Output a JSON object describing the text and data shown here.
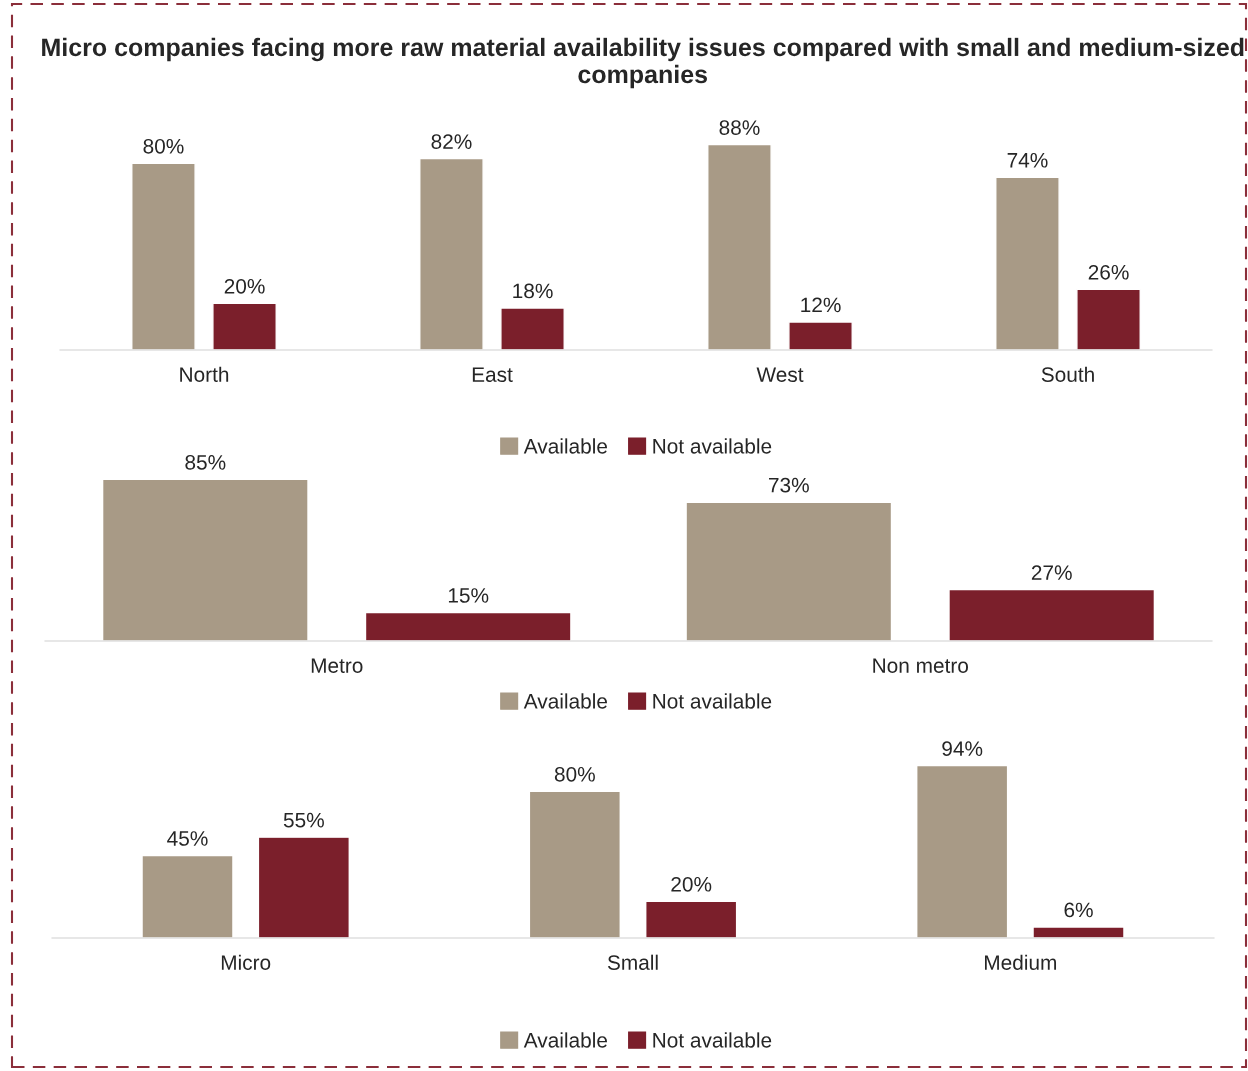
{
  "chart_data": [
    {
      "type": "bar",
      "title": "Micro companies facing more raw material availability issues compared with small and medium-sized companies",
      "categories": [
        "North",
        "East",
        "West",
        "South"
      ],
      "legend": "bottom",
      "series": [
        {
          "name": "Available",
          "color": "#a89a86",
          "values": [
            80,
            82,
            88,
            74
          ],
          "value_labels": [
            "80%",
            "82%",
            "88%",
            "74%"
          ]
        },
        {
          "name": "Not available",
          "color": "#7b1f2b",
          "values": [
            20,
            18,
            12,
            26
          ],
          "value_labels": [
            "20%",
            "18%",
            "12%",
            "26%"
          ]
        }
      ]
    },
    {
      "type": "bar",
      "categories": [
        "Metro",
        "Non metro"
      ],
      "legend": "bottom",
      "series": [
        {
          "name": "Available",
          "color": "#a89a86",
          "values": [
            85,
            73
          ],
          "value_labels": [
            "85%",
            "73%"
          ]
        },
        {
          "name": "Not available",
          "color": "#7b1f2b",
          "values": [
            15,
            27
          ],
          "value_labels": [
            "15%",
            "27%"
          ]
        }
      ]
    },
    {
      "type": "bar",
      "categories": [
        "Micro",
        "Small",
        "Medium"
      ],
      "legend": "bottom",
      "series": [
        {
          "name": "Available",
          "color": "#a89a86",
          "values": [
            45,
            80,
            94
          ],
          "value_labels": [
            "45%",
            "80%",
            "94%"
          ]
        },
        {
          "name": "Not available",
          "color": "#7b1f2b",
          "values": [
            55,
            20,
            6
          ],
          "value_labels": [
            "55%",
            "20%",
            "6%"
          ]
        }
      ]
    }
  ]
}
